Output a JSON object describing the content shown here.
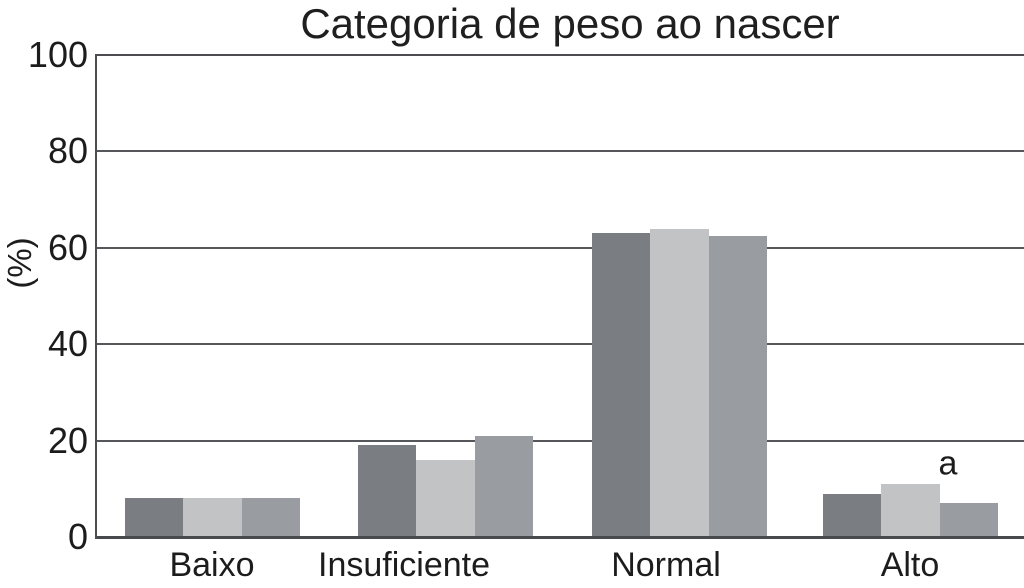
{
  "chart_data": {
    "type": "bar",
    "title": "Categoria de peso ao nascer",
    "ylabel": "(%)",
    "xlabel": "",
    "categories": [
      "Baixo",
      "Insuficiente",
      "Normal",
      "Alto"
    ],
    "series": [
      {
        "name": "dark-gray",
        "color": "#7a7d81",
        "values": [
          8,
          19,
          63,
          9
        ]
      },
      {
        "name": "light-gray",
        "color": "#c1c3c5",
        "values": [
          8,
          16,
          64,
          11
        ]
      },
      {
        "name": "medium-gray",
        "color": "#999ca0",
        "values": [
          8,
          21,
          62.5,
          7
        ]
      }
    ],
    "yticks": [
      0,
      20,
      40,
      60,
      80,
      100
    ],
    "ylim": [
      0,
      100
    ],
    "grid": true,
    "legend": "none",
    "annotation": {
      "text": "a",
      "target": "above light-gray bar of Alto"
    }
  },
  "colors": {
    "axis_line": "#4b4d50",
    "gridline": "#55575a",
    "text": "#1c1c1c",
    "background": "#ffffff"
  }
}
